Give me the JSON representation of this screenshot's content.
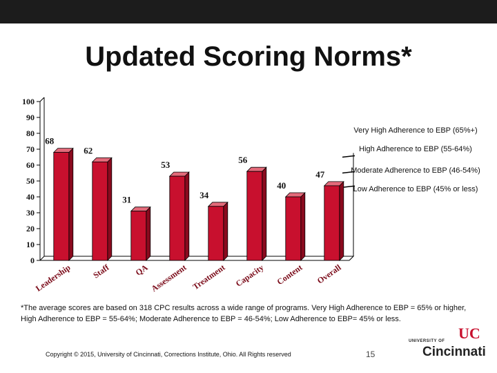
{
  "slide": {
    "title": "Updated Scoring Norms*",
    "footnote": "*The average scores are based on 318 CPC results across a wide range of programs.  Very High Adherence to EBP = 65% or higher, High Adherence to EBP = 55-64%; Moderate Adherence to EBP = 46-54%; Low Adherence to EBP= 45% or less.",
    "copyright": "Copyright © 2015, University of Cincinnati, Corrections Institute, Ohio. All Rights reserved",
    "page_number": "15",
    "logo": {
      "top_text": "UNIVERSITY OF",
      "main_text": "Cincinnati",
      "mark_text": "UC"
    }
  },
  "colors": {
    "topbar": "#1c1c1c",
    "bar_front": "#c8102e",
    "bar_side": "#8a0a1e",
    "bar_top": "#e36a7a",
    "axis_text": "#7a0a18",
    "band_line": "#000000",
    "logo_red": "#c8102e"
  },
  "chart_data": {
    "type": "bar",
    "categories": [
      "Leadership",
      "Staff",
      "QA",
      "Assessment",
      "Treatment",
      "Capacity",
      "Content",
      "Overall"
    ],
    "values": [
      68,
      62,
      31,
      53,
      34,
      56,
      40,
      47
    ],
    "value_labels": [
      "68",
      "62",
      "31",
      "53",
      "34",
      "56",
      "40",
      "47"
    ],
    "ylim": [
      0,
      100
    ],
    "yticks": [
      0,
      10,
      20,
      30,
      40,
      50,
      60,
      70,
      80,
      90,
      100
    ],
    "ytick_labels": [
      "0",
      "10",
      "20",
      "30",
      "40",
      "50",
      "60",
      "70",
      "80",
      "90",
      "100"
    ],
    "bands": [
      {
        "label": "Very High Adherence to EBP (65%+)",
        "from": 65,
        "to": 100
      },
      {
        "label": "High Adherence to EBP (55-64%)",
        "from": 55,
        "to": 65
      },
      {
        "label": "Moderate Adherence to EBP (46-54%)",
        "from": 46,
        "to": 55
      },
      {
        "label": "Low Adherence to EBP (45% or less)",
        "from": 0,
        "to": 46
      }
    ],
    "band_boundaries": [
      65,
      55,
      46
    ],
    "grid": false,
    "style": "3d"
  }
}
